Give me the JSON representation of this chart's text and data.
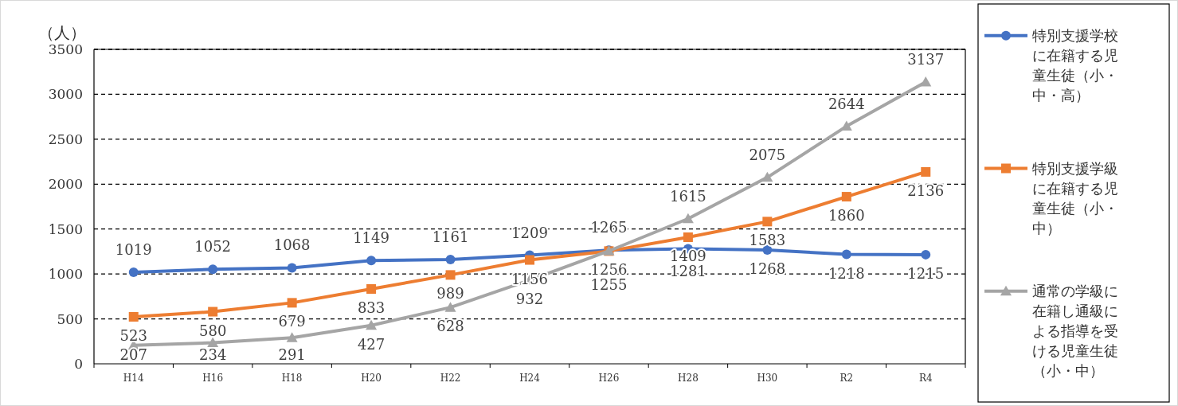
{
  "chart_data": {
    "type": "line",
    "ylabel": "（人）",
    "categories": [
      "H14",
      "H16",
      "H18",
      "H20",
      "H22",
      "H24",
      "H26",
      "H28",
      "H30",
      "R2",
      "R4"
    ],
    "series": [
      {
        "name": "特別支援学校に在籍する児童生徒（小・中・高）",
        "color": "#4472c4",
        "marker": "circle",
        "values": [
          1019,
          1052,
          1068,
          1149,
          1161,
          1209,
          1265,
          1281,
          1268,
          1218,
          1215
        ]
      },
      {
        "name": "特別支援学級に在籍する児童生徒（小・中）",
        "color": "#ed7d31",
        "marker": "square",
        "values": [
          523,
          580,
          679,
          833,
          989,
          1156,
          1255,
          1409,
          1583,
          1860,
          2136
        ]
      },
      {
        "name": "通常の学級に在籍し通級による指導を受ける児童生徒（小・中）",
        "color": "#a5a5a5",
        "marker": "triangle",
        "values": [
          207,
          234,
          291,
          427,
          628,
          932,
          1256,
          1615,
          2075,
          2644,
          3137
        ]
      }
    ],
    "ylim": [
      0,
      3500
    ],
    "yticks": [
      0,
      500,
      1000,
      1500,
      2000,
      2500,
      3000,
      3500
    ],
    "grid": "y",
    "legend": "right",
    "data_labels": true,
    "line_style": "solid"
  }
}
